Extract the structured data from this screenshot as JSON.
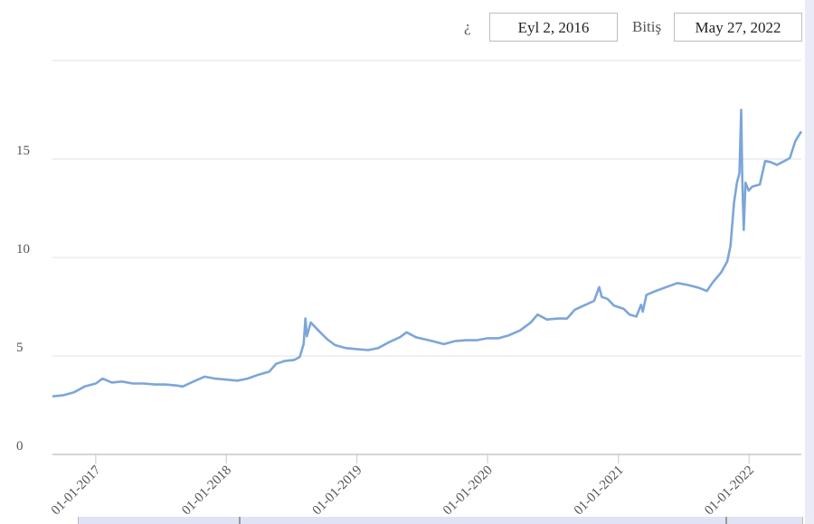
{
  "range_selector": {
    "from_label": "¿",
    "from_value": "Eyl 2, 2016",
    "to_label": "Bitiş",
    "to_value": "May 27, 2022"
  },
  "chart_data": {
    "type": "line",
    "title": "",
    "xlabel": "",
    "ylabel": "",
    "ylim": [
      0,
      20
    ],
    "xlim": [
      "2016-09-02",
      "2022-05-27"
    ],
    "y_ticks": [
      0,
      5,
      10,
      15
    ],
    "x_ticks": [
      "01-01-2017",
      "01-01-2018",
      "01-01-2019",
      "01-01-2020",
      "01-01-2021",
      "01-01-2022"
    ],
    "grid": true,
    "line_color": "#7ca6da",
    "series": [
      {
        "values": [
          [
            "2016-09-02",
            2.95
          ],
          [
            "2016-10-01",
            3.0
          ],
          [
            "2016-11-01",
            3.15
          ],
          [
            "2016-12-01",
            3.45
          ],
          [
            "2017-01-01",
            3.6
          ],
          [
            "2017-01-20",
            3.85
          ],
          [
            "2017-02-15",
            3.65
          ],
          [
            "2017-03-15",
            3.7
          ],
          [
            "2017-04-15",
            3.6
          ],
          [
            "2017-05-15",
            3.6
          ],
          [
            "2017-06-15",
            3.55
          ],
          [
            "2017-07-15",
            3.55
          ],
          [
            "2017-08-15",
            3.5
          ],
          [
            "2017-09-01",
            3.45
          ],
          [
            "2017-10-01",
            3.7
          ],
          [
            "2017-11-01",
            3.95
          ],
          [
            "2017-12-01",
            3.85
          ],
          [
            "2018-01-01",
            3.8
          ],
          [
            "2018-02-01",
            3.75
          ],
          [
            "2018-03-01",
            3.85
          ],
          [
            "2018-04-01",
            4.05
          ],
          [
            "2018-05-01",
            4.2
          ],
          [
            "2018-05-20",
            4.6
          ],
          [
            "2018-06-15",
            4.75
          ],
          [
            "2018-07-10",
            4.8
          ],
          [
            "2018-07-25",
            4.95
          ],
          [
            "2018-08-05",
            5.6
          ],
          [
            "2018-08-10",
            6.9
          ],
          [
            "2018-08-14",
            6.0
          ],
          [
            "2018-08-25",
            6.7
          ],
          [
            "2018-09-15",
            6.3
          ],
          [
            "2018-10-10",
            5.85
          ],
          [
            "2018-11-01",
            5.55
          ],
          [
            "2018-12-01",
            5.4
          ],
          [
            "2019-01-01",
            5.35
          ],
          [
            "2019-02-01",
            5.3
          ],
          [
            "2019-03-01",
            5.4
          ],
          [
            "2019-04-01",
            5.7
          ],
          [
            "2019-05-01",
            5.95
          ],
          [
            "2019-05-20",
            6.2
          ],
          [
            "2019-06-15",
            5.95
          ],
          [
            "2019-08-01",
            5.75
          ],
          [
            "2019-09-01",
            5.6
          ],
          [
            "2019-10-01",
            5.75
          ],
          [
            "2019-11-01",
            5.8
          ],
          [
            "2019-12-01",
            5.8
          ],
          [
            "2020-01-01",
            5.9
          ],
          [
            "2020-02-01",
            5.9
          ],
          [
            "2020-03-01",
            6.05
          ],
          [
            "2020-04-01",
            6.3
          ],
          [
            "2020-05-01",
            6.7
          ],
          [
            "2020-05-20",
            7.1
          ],
          [
            "2020-06-15",
            6.85
          ],
          [
            "2020-07-15",
            6.9
          ],
          [
            "2020-08-10",
            6.9
          ],
          [
            "2020-09-01",
            7.35
          ],
          [
            "2020-10-01",
            7.6
          ],
          [
            "2020-10-25",
            7.8
          ],
          [
            "2020-11-08",
            8.5
          ],
          [
            "2020-11-15",
            8.0
          ],
          [
            "2020-12-01",
            7.9
          ],
          [
            "2020-12-20",
            7.55
          ],
          [
            "2021-01-15",
            7.4
          ],
          [
            "2021-02-01",
            7.1
          ],
          [
            "2021-02-20",
            7.0
          ],
          [
            "2021-03-05",
            7.6
          ],
          [
            "2021-03-10",
            7.25
          ],
          [
            "2021-03-20",
            8.1
          ],
          [
            "2021-04-15",
            8.3
          ],
          [
            "2021-05-15",
            8.5
          ],
          [
            "2021-06-15",
            8.7
          ],
          [
            "2021-07-15",
            8.6
          ],
          [
            "2021-08-15",
            8.45
          ],
          [
            "2021-09-05",
            8.3
          ],
          [
            "2021-09-20",
            8.7
          ],
          [
            "2021-10-15",
            9.25
          ],
          [
            "2021-11-01",
            9.8
          ],
          [
            "2021-11-10",
            10.6
          ],
          [
            "2021-11-20",
            12.8
          ],
          [
            "2021-11-28",
            13.8
          ],
          [
            "2021-12-05",
            14.3
          ],
          [
            "2021-12-10",
            17.5
          ],
          [
            "2021-12-13",
            14.0
          ],
          [
            "2021-12-17",
            11.4
          ],
          [
            "2021-12-22",
            13.8
          ],
          [
            "2021-12-31",
            13.4
          ],
          [
            "2022-01-10",
            13.6
          ],
          [
            "2022-01-31",
            13.7
          ],
          [
            "2022-02-15",
            14.9
          ],
          [
            "2022-03-01",
            14.85
          ],
          [
            "2022-03-20",
            14.7
          ],
          [
            "2022-04-10",
            14.9
          ],
          [
            "2022-04-25",
            15.05
          ],
          [
            "2022-05-10",
            15.9
          ],
          [
            "2022-05-20",
            16.2
          ],
          [
            "2022-05-27",
            16.4
          ]
        ]
      }
    ]
  }
}
